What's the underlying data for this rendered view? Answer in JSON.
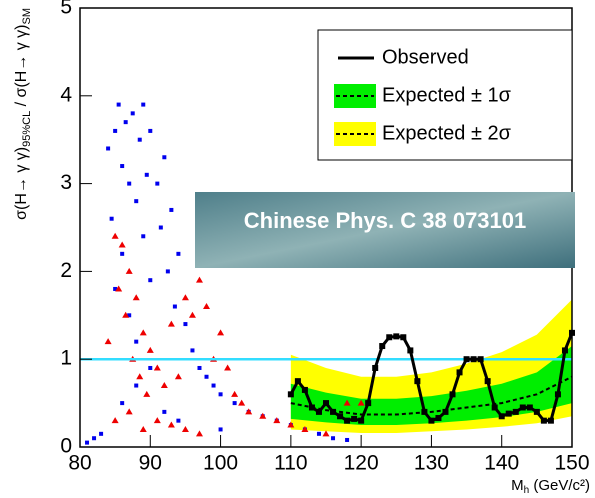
{
  "chart_data": {
    "type": "line",
    "x_label": {
      "main": "M",
      "sub": "h",
      "rest": " (GeV/c²)"
    },
    "y_label": {
      "main": "σ(H→ γ γ)",
      "sub": "95%CL",
      "sep": " / σ(H→ γ γ)",
      "sub2": "SM"
    },
    "annotation": "Chinese Phys. C 38 073101",
    "xlim": [
      80,
      150
    ],
    "ylim": [
      0,
      5
    ],
    "xticks": [
      80,
      90,
      100,
      110,
      120,
      130,
      140,
      150
    ],
    "yticks": [
      0,
      1,
      2,
      3,
      4,
      5
    ],
    "reference_line": {
      "value": 1,
      "color": "#33ddff"
    },
    "band_x": [
      110,
      115,
      120,
      125,
      130,
      135,
      140,
      145,
      150
    ],
    "series": [
      {
        "name": "Observed",
        "color": "#000000",
        "x": [
          110,
          111,
          112,
          113,
          114,
          115,
          116,
          117,
          118,
          119,
          120,
          121,
          122,
          123,
          124,
          125,
          126,
          127,
          128,
          129,
          130,
          131,
          132,
          133,
          134,
          135,
          136,
          137,
          138,
          139,
          140,
          141,
          142,
          143,
          144,
          145,
          146,
          147,
          148,
          149,
          150
        ],
        "values": [
          0.6,
          0.75,
          0.65,
          0.45,
          0.4,
          0.5,
          0.4,
          0.35,
          0.3,
          0.32,
          0.3,
          0.5,
          0.9,
          1.15,
          1.25,
          1.26,
          1.25,
          1.1,
          0.75,
          0.4,
          0.3,
          0.33,
          0.4,
          0.6,
          0.85,
          1.0,
          1.0,
          1.0,
          0.75,
          0.45,
          0.35,
          0.38,
          0.4,
          0.45,
          0.45,
          0.4,
          0.3,
          0.3,
          0.6,
          1.1,
          1.3
        ]
      },
      {
        "name": "Expected ± 1σ",
        "color": "#00ee00",
        "values": [
          0.5,
          0.42,
          0.37,
          0.37,
          0.4,
          0.45,
          0.5,
          0.6,
          0.8
        ],
        "lower": [
          0.32,
          0.28,
          0.25,
          0.25,
          0.27,
          0.3,
          0.34,
          0.4,
          0.5
        ],
        "upper": [
          0.72,
          0.62,
          0.55,
          0.55,
          0.58,
          0.64,
          0.72,
          0.85,
          1.15
        ]
      },
      {
        "name": "Expected ± 2σ",
        "color": "#ffff00",
        "lower": [
          0.2,
          0.18,
          0.16,
          0.16,
          0.18,
          0.2,
          0.23,
          0.27,
          0.35
        ],
        "upper": [
          1.05,
          0.9,
          0.8,
          0.8,
          0.85,
          0.95,
          1.08,
          1.28,
          1.68
        ]
      }
    ],
    "scatter": [
      {
        "color": "#0000ee",
        "marker": "square",
        "x": [
          84,
          84.5,
          85,
          85,
          85.5,
          86,
          86,
          86.5,
          87,
          87,
          87.5,
          88,
          88,
          88.5,
          89,
          89,
          89.5,
          90,
          90,
          91,
          91.5,
          92,
          92.5,
          93,
          93.5,
          94,
          95,
          96,
          97,
          98,
          99,
          100,
          102,
          104,
          106,
          108,
          110,
          112,
          114,
          116,
          118,
          83,
          82,
          81,
          86,
          88,
          90,
          92,
          94,
          100
        ],
        "values": [
          3.4,
          2.6,
          3.6,
          1.8,
          3.9,
          3.2,
          2.2,
          3.7,
          3.0,
          1.5,
          3.8,
          2.8,
          1.2,
          3.5,
          3.9,
          2.4,
          3.1,
          3.6,
          1.9,
          3.0,
          2.5,
          3.3,
          2.0,
          2.7,
          1.6,
          2.2,
          1.4,
          1.1,
          0.9,
          0.8,
          0.7,
          0.6,
          0.5,
          0.4,
          0.35,
          0.3,
          0.25,
          0.2,
          0.15,
          0.1,
          0.08,
          0.15,
          0.1,
          0.05,
          0.5,
          0.7,
          0.9,
          0.4,
          0.3,
          0.2
        ]
      },
      {
        "color": "#ee0000",
        "marker": "triangle",
        "x": [
          84,
          85,
          85.5,
          86,
          86.5,
          87,
          87.5,
          88,
          88.5,
          89,
          89.5,
          90,
          91,
          92,
          93,
          94,
          95,
          96,
          97,
          98,
          99,
          100,
          101,
          102,
          103,
          104,
          106,
          108,
          110,
          112,
          115,
          118,
          120,
          85,
          87,
          89,
          91,
          93,
          95,
          97
        ],
        "values": [
          1.2,
          2.4,
          1.8,
          2.3,
          1.5,
          2.0,
          1.0,
          1.7,
          0.8,
          1.3,
          0.6,
          1.1,
          0.9,
          0.7,
          1.4,
          0.8,
          1.7,
          1.5,
          1.9,
          1.6,
          1.0,
          1.3,
          0.9,
          0.6,
          0.5,
          0.4,
          0.35,
          0.3,
          0.25,
          0.2,
          0.15,
          0.5,
          0.5,
          0.3,
          0.4,
          0.2,
          0.3,
          0.25,
          0.2,
          0.15
        ]
      }
    ]
  }
}
